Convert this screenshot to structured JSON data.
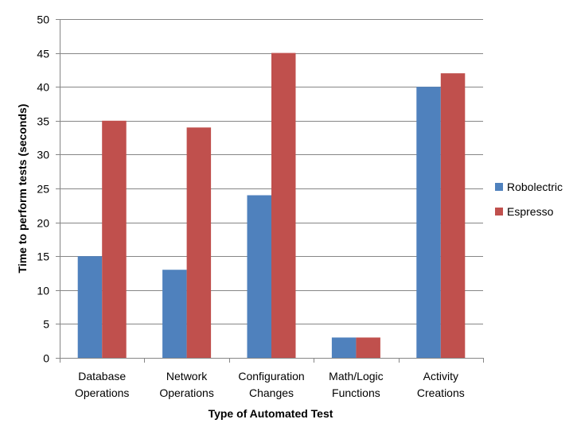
{
  "chart_data": {
    "type": "bar",
    "title": "",
    "xlabel": "Type of Automated Test",
    "ylabel": "Time to perform tests (seconds)",
    "ylim": [
      0,
      50
    ],
    "ytick_step": 5,
    "grid": true,
    "legend_position": "right",
    "categories": [
      [
        "Database",
        "Operations"
      ],
      [
        "Network",
        "Operations"
      ],
      [
        "Configuration",
        "Changes"
      ],
      [
        "Math/Logic",
        "Functions"
      ],
      [
        "Activity",
        "Creations"
      ]
    ],
    "series": [
      {
        "name": "Robolectric",
        "color": "#4F81BD",
        "values": [
          15,
          13,
          24,
          3,
          40
        ]
      },
      {
        "name": "Espresso",
        "color": "#C0504D",
        "values": [
          35,
          34,
          45,
          3,
          42
        ]
      }
    ]
  }
}
